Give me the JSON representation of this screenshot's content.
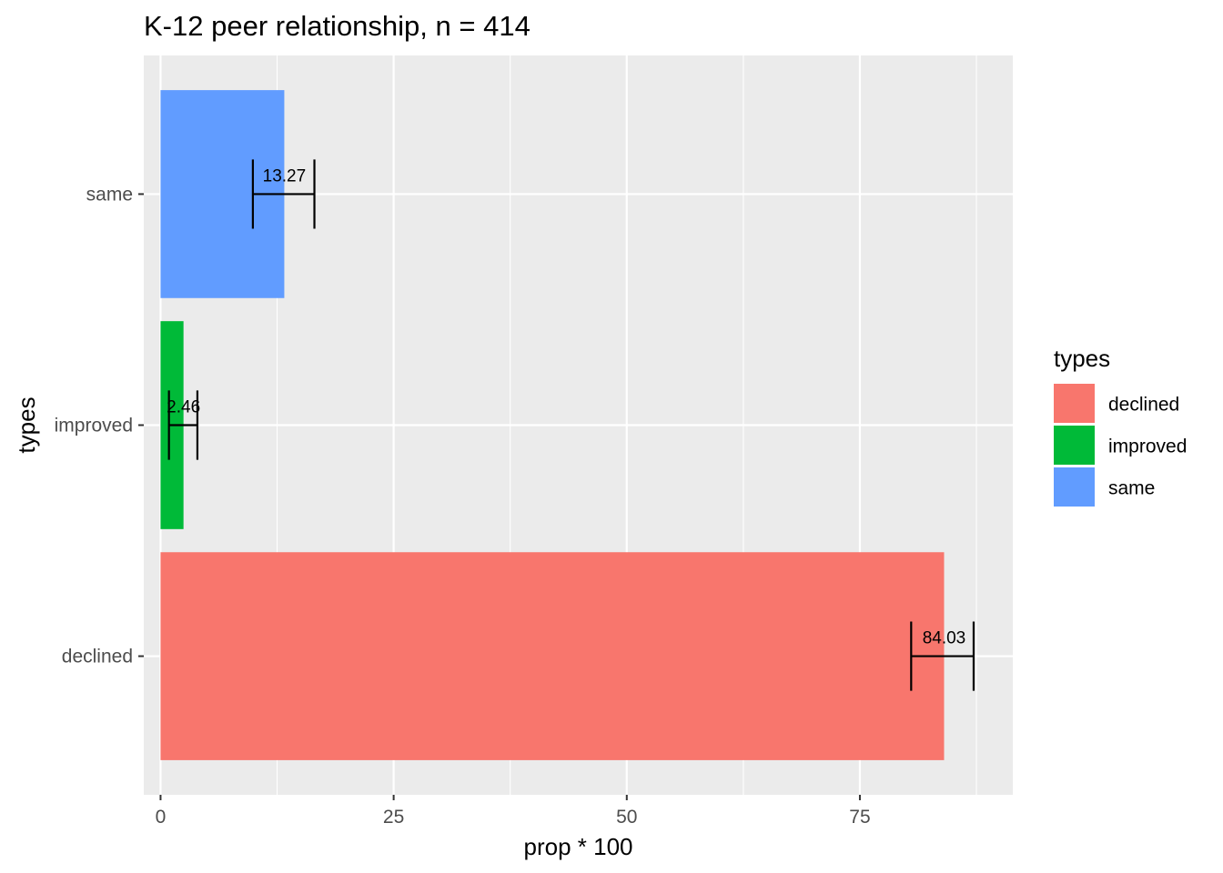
{
  "chart_data": {
    "type": "bar",
    "orientation": "horizontal",
    "title": "K-12 peer relationship, n = 414",
    "xlabel": "prop * 100",
    "ylabel": "types",
    "categories": [
      "declined",
      "improved",
      "same"
    ],
    "values": [
      84.03,
      2.46,
      13.27
    ],
    "value_labels": [
      "84.03",
      "2.46",
      "13.27"
    ],
    "error_bars": [
      {
        "low": 80.5,
        "high": 87.2
      },
      {
        "low": 0.9,
        "high": 3.95
      },
      {
        "low": 9.9,
        "high": 16.5
      }
    ],
    "colors": [
      "#F8766D",
      "#00BA38",
      "#619CFF"
    ],
    "xlim": [
      -1.8,
      91.4
    ],
    "xticks": [
      0,
      25,
      50,
      75
    ],
    "xtick_labels": [
      "0",
      "25",
      "50",
      "75"
    ],
    "grid": true,
    "legend": {
      "title": "types",
      "position": "right",
      "entries": [
        "declined",
        "improved",
        "same"
      ]
    }
  }
}
